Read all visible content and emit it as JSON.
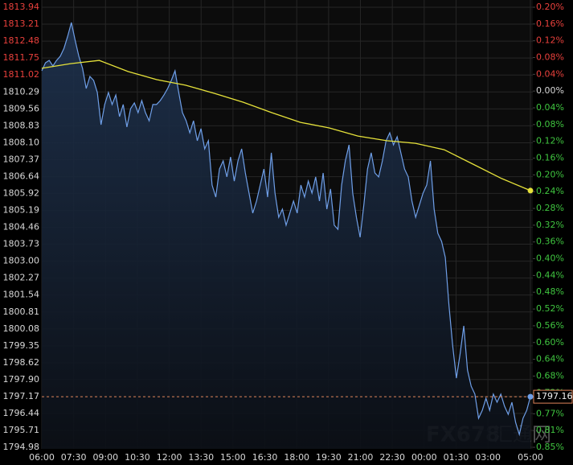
{
  "chart_data": {
    "type": "line",
    "xlim": [
      0,
      1380
    ],
    "xticks": [
      {
        "value": 0,
        "label": "06:00"
      },
      {
        "value": 90,
        "label": "07:30"
      },
      {
        "value": 180,
        "label": "09:00"
      },
      {
        "value": 270,
        "label": "10:30"
      },
      {
        "value": 360,
        "label": "12:00"
      },
      {
        "value": 450,
        "label": "13:30"
      },
      {
        "value": 540,
        "label": "15:00"
      },
      {
        "value": 630,
        "label": "16:30"
      },
      {
        "value": 720,
        "label": "18:00"
      },
      {
        "value": 810,
        "label": "19:30"
      },
      {
        "value": 900,
        "label": "21:00"
      },
      {
        "value": 990,
        "label": "22:30"
      },
      {
        "value": 1080,
        "label": "00:00"
      },
      {
        "value": 1170,
        "label": "01:30"
      },
      {
        "value": 1260,
        "label": "03:00"
      },
      {
        "value": 1380,
        "label": "05:00"
      }
    ],
    "ylim": [
      1794.98,
      1813.94
    ],
    "yticks": [
      1813.94,
      1813.21,
      1812.48,
      1811.75,
      1811.02,
      1810.29,
      1809.56,
      1808.83,
      {
        "value": 1808.1,
        "label": "1808.10"
      },
      1807.37,
      1806.64,
      1805.92,
      1805.19,
      1804.46,
      1803.73,
      {
        "value": 1803,
        "label": "1803.00"
      },
      1802.27,
      1801.54,
      1800.81,
      1800.08,
      1799.35,
      1798.62,
      {
        "value": 1797.9,
        "label": "1797.90"
      },
      1797.17,
      1796.44,
      1795.71,
      1794.98
    ],
    "y2lim": [
      -0.85,
      0.2
    ],
    "y2ticks": [
      {
        "value": 0.2,
        "label": "0.20%"
      },
      {
        "value": 0.16,
        "label": "0.16%"
      },
      {
        "value": 0.12,
        "label": "0.12%"
      },
      {
        "value": 0.08,
        "label": "0.08%"
      },
      {
        "value": 0.04,
        "label": "0.04%"
      },
      {
        "value": 0,
        "label": "0.00%"
      },
      {
        "value": -0.04,
        "label": "0.04%"
      },
      {
        "value": -0.08,
        "label": "0.08%"
      },
      {
        "value": -0.12,
        "label": "0.12%"
      },
      {
        "value": -0.16,
        "label": "0.16%"
      },
      {
        "value": -0.2,
        "label": "0.20%"
      },
      {
        "value": -0.24,
        "label": "0.24%"
      },
      {
        "value": -0.28,
        "label": "0.28%"
      },
      {
        "value": -0.32,
        "label": "0.32%"
      },
      {
        "value": -0.36,
        "label": "0.36%"
      },
      {
        "value": -0.4,
        "label": "0.40%"
      },
      {
        "value": -0.44,
        "label": "0.44%"
      },
      {
        "value": -0.48,
        "label": "0.48%"
      },
      {
        "value": -0.52,
        "label": "0.52%"
      },
      {
        "value": -0.56,
        "label": "0.56%"
      },
      {
        "value": -0.6,
        "label": "0.60%"
      },
      {
        "value": -0.64,
        "label": "0.64%"
      },
      {
        "value": -0.68,
        "label": "0.68%"
      },
      {
        "value": -0.72,
        "label": "0.72%"
      },
      {
        "value": -0.77,
        "label": "0.77%"
      },
      {
        "value": -0.81,
        "label": "0.81%"
      },
      {
        "value": -0.85,
        "label": "0.85%"
      }
    ],
    "base_value": 1810.29,
    "up_color": "#e8403c",
    "down_color": "#3fc43f",
    "label_color": "#d8d8d8",
    "grid": true,
    "watermark": [
      "FX678",
      "汇通网"
    ],
    "series": [
      {
        "color": "#6f9fe8",
        "values": [
          1811.2,
          1811.55,
          1811.65,
          1811.41,
          1811.65,
          1811.83,
          1812.17,
          1812.69,
          1813.28,
          1812.52,
          1811.83,
          1811.31,
          1810.44,
          1810.96,
          1810.79,
          1810.27,
          1808.88,
          1809.75,
          1810.27,
          1809.75,
          1810.16,
          1809.23,
          1809.75,
          1808.78,
          1809.57,
          1809.82,
          1809.4,
          1809.92,
          1809.4,
          1809.05,
          1809.75,
          1809.75,
          1809.92,
          1810.16,
          1810.44,
          1810.79,
          1811.2,
          1810.27,
          1809.4,
          1809.05,
          1808.53,
          1809.05,
          1808.19,
          1808.71,
          1807.84,
          1808.19,
          1806.28,
          1805.76,
          1806.97,
          1807.32,
          1806.63,
          1807.49,
          1806.45,
          1807.32,
          1807.84,
          1806.8,
          1805.93,
          1805.07,
          1805.59,
          1806.28,
          1806.97,
          1805.76,
          1807.67,
          1805.93,
          1804.89,
          1805.24,
          1804.55,
          1805.07,
          1805.59,
          1805.07,
          1806.28,
          1805.76,
          1806.45,
          1805.93,
          1806.63,
          1805.59,
          1806.8,
          1805.24,
          1806.11,
          1804.55,
          1804.37,
          1806.28,
          1807.32,
          1808.01,
          1805.93,
          1804.89,
          1804.03,
          1805.41,
          1806.97,
          1807.67,
          1806.8,
          1806.63,
          1807.32,
          1808.19,
          1808.53,
          1808.01,
          1808.36,
          1807.67,
          1806.97,
          1806.63,
          1805.59,
          1804.89,
          1805.41,
          1805.93,
          1806.28,
          1807.32,
          1805.24,
          1804.2,
          1803.85,
          1803.16,
          1801.08,
          1799.35,
          1797.96,
          1799.0,
          1800.21,
          1798.31,
          1797.61,
          1797.27,
          1796.23,
          1796.57,
          1797.09,
          1796.57,
          1797.27,
          1796.92,
          1797.27,
          1796.75,
          1796.4,
          1796.92,
          1796.05,
          1795.53,
          1796.23,
          1796.57,
          1797.16
        ],
        "value_labels": {
          "last": "1797.16"
        }
      },
      {
        "color": "#e6e23a",
        "values": [
          1811.31,
          1811.51,
          1811.65,
          1811.17,
          1810.82,
          1810.58,
          1810.23,
          1809.85,
          1809.4,
          1808.98,
          1808.74,
          1808.39,
          1808.19,
          1808.08,
          1807.8,
          1807.18,
          1806.56,
          1806.04
        ]
      }
    ]
  }
}
